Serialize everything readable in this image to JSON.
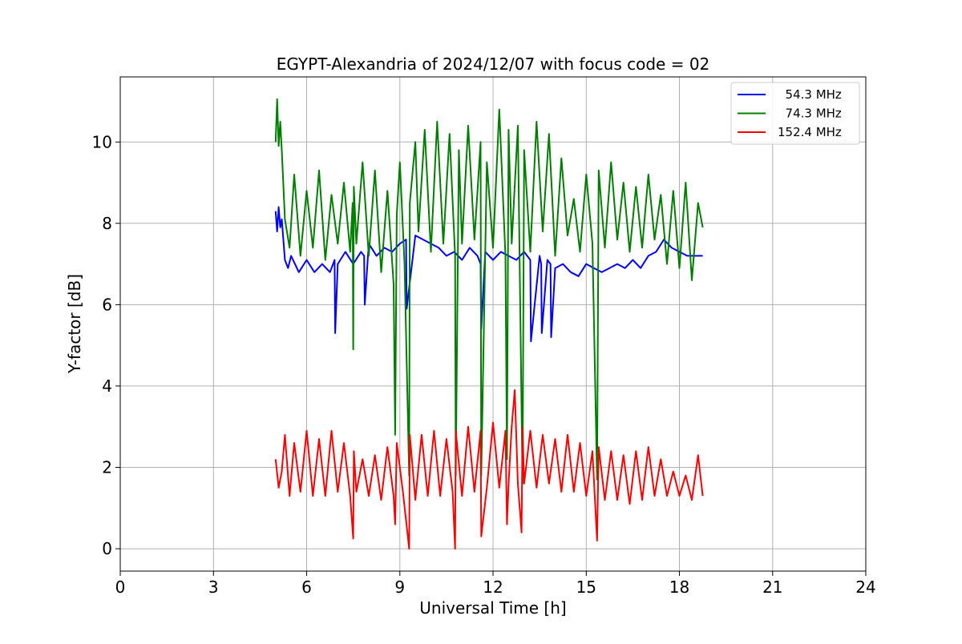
{
  "chart_data": {
    "type": "line",
    "title": "EGYPT-Alexandria of 2024/12/07 with focus code = 02",
    "xlabel": "Universal Time [h]",
    "ylabel": "Y-factor [dB]",
    "xlim": [
      0,
      24
    ],
    "ylim": [
      -0.55,
      11.6
    ],
    "xticks": [
      0,
      3,
      6,
      9,
      12,
      15,
      18,
      21,
      24
    ],
    "xtick_labels": [
      "0",
      "3",
      "6",
      "9",
      "12",
      "15",
      "18",
      "21",
      "24"
    ],
    "yticks": [
      0,
      2,
      4,
      6,
      8,
      10
    ],
    "ytick_labels": [
      "0",
      "2",
      "4",
      "6",
      "8",
      "10"
    ],
    "grid": true,
    "legend_position": "top-right",
    "series": [
      {
        "name": "  54.3 MHz",
        "color": "#0000ff",
        "x": [
          5.0,
          5.05,
          5.1,
          5.15,
          5.2,
          5.3,
          5.4,
          5.5,
          5.75,
          6.0,
          6.25,
          6.5,
          6.75,
          6.9,
          6.92,
          7.0,
          7.25,
          7.5,
          7.75,
          7.85,
          7.87,
          8.0,
          8.25,
          8.5,
          8.75,
          9.0,
          9.2,
          9.22,
          9.5,
          9.75,
          10.0,
          10.25,
          10.5,
          10.75,
          11.0,
          11.25,
          11.5,
          11.6,
          11.62,
          11.75,
          12.0,
          12.25,
          12.5,
          12.75,
          13.0,
          13.2,
          13.22,
          13.5,
          13.55,
          13.57,
          13.75,
          13.85,
          13.87,
          14.0,
          14.25,
          14.5,
          14.75,
          15.0,
          15.25,
          15.5,
          15.75,
          16.0,
          16.25,
          16.5,
          16.75,
          17.0,
          17.25,
          17.5,
          17.75,
          18.0,
          18.25,
          18.5,
          18.75
        ],
        "y": [
          8.3,
          7.8,
          8.4,
          7.9,
          8.1,
          7.1,
          6.9,
          7.2,
          6.8,
          7.1,
          6.8,
          7.0,
          6.8,
          7.1,
          5.3,
          7.0,
          7.3,
          7.0,
          7.3,
          7.2,
          6.0,
          7.5,
          7.2,
          7.4,
          7.3,
          7.5,
          7.6,
          5.9,
          7.7,
          7.6,
          7.5,
          7.4,
          7.2,
          7.3,
          7.1,
          7.4,
          7.2,
          7.0,
          5.4,
          7.3,
          7.1,
          7.3,
          7.2,
          7.1,
          7.3,
          7.1,
          5.1,
          7.2,
          7.0,
          5.3,
          7.1,
          7.0,
          5.2,
          6.9,
          7.0,
          6.8,
          6.7,
          7.0,
          6.9,
          6.8,
          6.9,
          7.0,
          6.9,
          7.1,
          6.9,
          7.2,
          7.3,
          7.6,
          7.4,
          7.3,
          7.2,
          7.2,
          7.2
        ]
      },
      {
        "name": "  74.3 MHz",
        "color": "#008000",
        "x": [
          5.0,
          5.05,
          5.1,
          5.15,
          5.2,
          5.3,
          5.45,
          5.6,
          5.8,
          6.0,
          6.2,
          6.4,
          6.6,
          6.8,
          7.0,
          7.2,
          7.4,
          7.48,
          7.5,
          7.52,
          7.6,
          7.8,
          8.0,
          8.2,
          8.4,
          8.6,
          8.8,
          8.85,
          8.9,
          9.0,
          9.15,
          9.3,
          9.32,
          9.5,
          9.6,
          9.8,
          10.0,
          10.2,
          10.4,
          10.6,
          10.78,
          10.8,
          10.9,
          11.0,
          11.2,
          11.4,
          11.6,
          11.62,
          11.8,
          12.0,
          12.2,
          12.4,
          12.45,
          12.5,
          12.6,
          12.8,
          12.95,
          13.0,
          13.2,
          13.4,
          13.6,
          13.8,
          14.0,
          14.2,
          14.4,
          14.6,
          14.8,
          15.0,
          15.2,
          15.35,
          15.4,
          15.6,
          15.8,
          16.0,
          16.2,
          16.4,
          16.6,
          16.8,
          17.0,
          17.2,
          17.4,
          17.6,
          17.8,
          18.0,
          18.2,
          18.4,
          18.6,
          18.75
        ],
        "y": [
          10.0,
          11.05,
          9.9,
          10.5,
          9.8,
          8.1,
          7.4,
          9.2,
          7.2,
          8.8,
          7.4,
          9.3,
          7.1,
          8.7,
          7.5,
          9.0,
          7.3,
          8.5,
          4.9,
          8.9,
          7.5,
          9.5,
          7.2,
          9.3,
          6.8,
          8.8,
          6.5,
          2.8,
          8.2,
          9.5,
          7.0,
          1.8,
          8.5,
          10.0,
          7.8,
          10.3,
          7.3,
          10.5,
          7.5,
          10.2,
          7.2,
          1.8,
          9.8,
          7.5,
          10.4,
          7.6,
          10.0,
          1.8,
          9.5,
          7.4,
          10.8,
          7.2,
          2.2,
          10.3,
          7.5,
          10.4,
          1.6,
          9.8,
          7.3,
          10.5,
          7.8,
          10.2,
          7.2,
          9.6,
          7.7,
          8.6,
          7.3,
          9.2,
          7.5,
          1.7,
          9.3,
          7.4,
          9.5,
          7.6,
          9.0,
          7.3,
          8.9,
          7.4,
          9.2,
          7.6,
          8.7,
          7.0,
          8.8,
          6.9,
          9.0,
          6.6,
          8.5,
          7.9
        ]
      },
      {
        "name": "152.4 MHz",
        "color": "#ff0000",
        "x": [
          5.0,
          5.1,
          5.2,
          5.3,
          5.45,
          5.6,
          5.8,
          6.0,
          6.2,
          6.4,
          6.6,
          6.8,
          7.0,
          7.2,
          7.4,
          7.5,
          7.52,
          7.6,
          7.8,
          8.0,
          8.2,
          8.4,
          8.6,
          8.8,
          8.85,
          8.9,
          9.1,
          9.3,
          9.32,
          9.5,
          9.7,
          9.9,
          10.1,
          10.3,
          10.5,
          10.7,
          10.78,
          10.8,
          11.0,
          11.2,
          11.4,
          11.6,
          11.62,
          11.8,
          12.0,
          12.2,
          12.4,
          12.45,
          12.5,
          12.6,
          12.7,
          12.8,
          12.92,
          12.95,
          13.0,
          13.2,
          13.4,
          13.6,
          13.8,
          14.0,
          14.2,
          14.4,
          14.6,
          14.8,
          15.0,
          15.2,
          15.35,
          15.4,
          15.6,
          15.8,
          16.0,
          16.2,
          16.4,
          16.6,
          16.8,
          17.0,
          17.2,
          17.4,
          17.6,
          17.8,
          18.0,
          18.2,
          18.4,
          18.6,
          18.75
        ],
        "y": [
          2.2,
          1.5,
          1.9,
          2.8,
          1.3,
          2.6,
          1.4,
          2.9,
          1.3,
          2.7,
          1.3,
          2.9,
          1.4,
          2.6,
          1.3,
          0.25,
          2.4,
          1.4,
          2.2,
          1.3,
          2.3,
          1.2,
          2.5,
          1.3,
          0.6,
          2.6,
          1.4,
          0.0,
          2.8,
          1.2,
          2.8,
          1.3,
          2.9,
          1.3,
          2.7,
          1.4,
          0.0,
          2.9,
          1.3,
          3.0,
          1.4,
          2.9,
          0.3,
          1.5,
          3.1,
          1.5,
          2.9,
          0.6,
          1.6,
          3.0,
          3.9,
          1.6,
          0.4,
          3.0,
          1.6,
          2.9,
          1.5,
          2.8,
          1.6,
          2.7,
          1.4,
          2.8,
          1.4,
          2.6,
          1.3,
          2.4,
          0.2,
          2.5,
          1.2,
          2.4,
          1.2,
          2.3,
          1.1,
          2.4,
          1.2,
          2.5,
          1.3,
          2.2,
          1.3,
          1.9,
          1.3,
          1.8,
          1.2,
          2.3,
          1.3
        ]
      }
    ]
  }
}
